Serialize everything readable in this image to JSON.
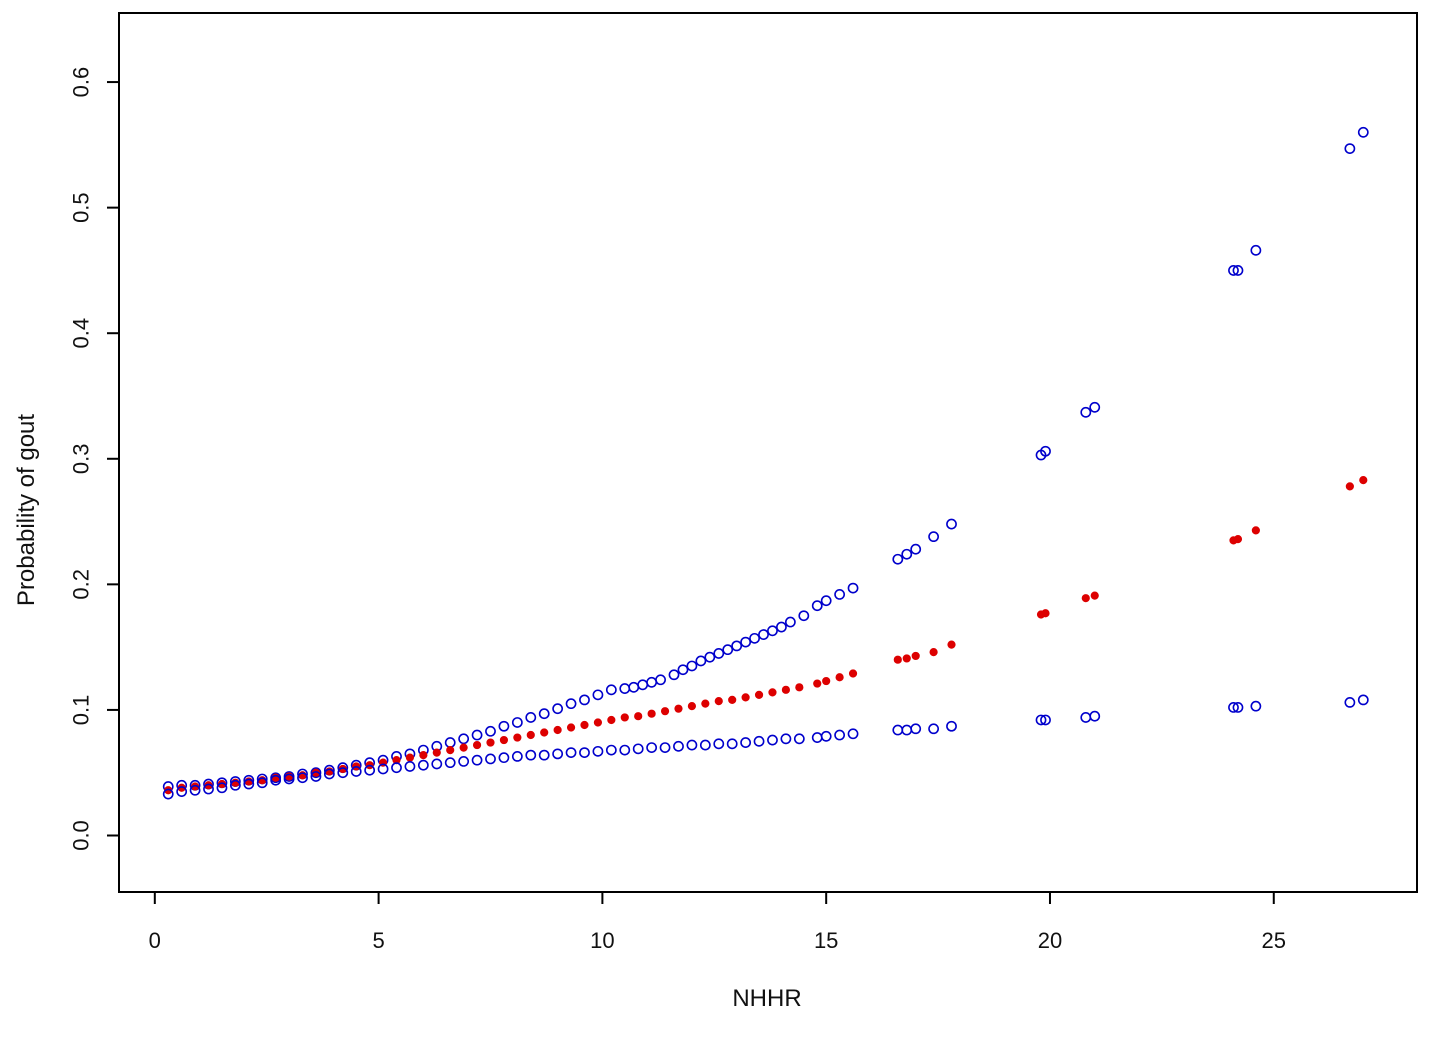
{
  "chart_data": {
    "type": "scatter",
    "title": "",
    "xlabel": "NHHR",
    "ylabel": "Probability of gout",
    "xlim": [
      -0.8,
      28.2
    ],
    "ylim": [
      -0.045,
      0.655
    ],
    "xticks": [
      0,
      5,
      10,
      15,
      20,
      25
    ],
    "xtick_labels": [
      "0",
      "5",
      "10",
      "15",
      "20",
      "25"
    ],
    "yticks": [
      0.0,
      0.1,
      0.2,
      0.3,
      0.4,
      0.5,
      0.6
    ],
    "ytick_labels": [
      "0.0",
      "0.1",
      "0.2",
      "0.3",
      "0.4",
      "0.5",
      "0.6"
    ],
    "grid": false,
    "legend": "none",
    "series": [
      {
        "role": "upper-ci",
        "color": "#0000cc",
        "marker": "open-circle",
        "x": [
          0.3,
          0.6,
          0.9,
          1.2,
          1.5,
          1.8,
          2.1,
          2.4,
          2.7,
          3.0,
          3.3,
          3.6,
          3.9,
          4.2,
          4.5,
          4.8,
          5.1,
          5.4,
          5.7,
          6.0,
          6.3,
          6.6,
          6.9,
          7.2,
          7.5,
          7.8,
          8.1,
          8.4,
          8.7,
          9.0,
          9.3,
          9.6,
          9.9,
          10.2,
          10.5,
          10.7,
          10.9,
          11.1,
          11.3,
          11.6,
          11.8,
          12.0,
          12.2,
          12.4,
          12.6,
          12.8,
          13.0,
          13.2,
          13.4,
          13.6,
          13.8,
          14.0,
          14.2,
          14.5,
          14.8,
          15.0,
          15.3,
          15.6,
          16.6,
          16.8,
          17.0,
          17.4,
          17.8,
          19.8,
          19.9,
          20.8,
          21.0,
          24.1,
          24.2,
          24.6,
          26.7,
          27.0
        ],
        "y": [
          0.039,
          0.04,
          0.04,
          0.041,
          0.042,
          0.043,
          0.044,
          0.045,
          0.046,
          0.047,
          0.049,
          0.05,
          0.052,
          0.054,
          0.056,
          0.058,
          0.06,
          0.063,
          0.065,
          0.068,
          0.071,
          0.074,
          0.077,
          0.08,
          0.083,
          0.087,
          0.09,
          0.094,
          0.097,
          0.101,
          0.105,
          0.108,
          0.112,
          0.116,
          0.117,
          0.118,
          0.12,
          0.122,
          0.124,
          0.128,
          0.132,
          0.135,
          0.139,
          0.142,
          0.145,
          0.148,
          0.151,
          0.154,
          0.157,
          0.16,
          0.163,
          0.166,
          0.17,
          0.175,
          0.183,
          0.187,
          0.192,
          0.197,
          0.22,
          0.224,
          0.228,
          0.238,
          0.248,
          0.303,
          0.306,
          0.337,
          0.341,
          0.45,
          0.45,
          0.466,
          0.547,
          0.56
        ]
      },
      {
        "role": "estimate",
        "color": "#dd0000",
        "marker": "filled-dot",
        "x": [
          0.3,
          0.6,
          0.9,
          1.2,
          1.5,
          1.8,
          2.1,
          2.4,
          2.7,
          3.0,
          3.3,
          3.6,
          3.9,
          4.2,
          4.5,
          4.8,
          5.1,
          5.4,
          5.7,
          6.0,
          6.3,
          6.6,
          6.9,
          7.2,
          7.5,
          7.8,
          8.1,
          8.4,
          8.7,
          9.0,
          9.3,
          9.6,
          9.9,
          10.2,
          10.5,
          10.8,
          11.1,
          11.4,
          11.7,
          12.0,
          12.3,
          12.6,
          12.9,
          13.2,
          13.5,
          13.8,
          14.1,
          14.4,
          14.8,
          15.0,
          15.3,
          15.6,
          16.6,
          16.8,
          17.0,
          17.4,
          17.8,
          19.8,
          19.9,
          20.8,
          21.0,
          24.1,
          24.2,
          24.6,
          26.7,
          27.0
        ],
        "y": [
          0.036,
          0.038,
          0.039,
          0.04,
          0.041,
          0.042,
          0.043,
          0.044,
          0.046,
          0.047,
          0.048,
          0.05,
          0.051,
          0.053,
          0.055,
          0.056,
          0.058,
          0.06,
          0.062,
          0.064,
          0.066,
          0.068,
          0.07,
          0.072,
          0.074,
          0.076,
          0.078,
          0.08,
          0.082,
          0.084,
          0.086,
          0.088,
          0.09,
          0.092,
          0.094,
          0.095,
          0.097,
          0.099,
          0.101,
          0.103,
          0.105,
          0.107,
          0.108,
          0.11,
          0.112,
          0.114,
          0.116,
          0.118,
          0.121,
          0.123,
          0.126,
          0.129,
          0.14,
          0.141,
          0.143,
          0.146,
          0.152,
          0.176,
          0.177,
          0.189,
          0.191,
          0.235,
          0.236,
          0.243,
          0.278,
          0.283
        ]
      },
      {
        "role": "lower-ci",
        "color": "#0000cc",
        "marker": "open-circle",
        "x": [
          0.3,
          0.6,
          0.9,
          1.2,
          1.5,
          1.8,
          2.1,
          2.4,
          2.7,
          3.0,
          3.3,
          3.6,
          3.9,
          4.2,
          4.5,
          4.8,
          5.1,
          5.4,
          5.7,
          6.0,
          6.3,
          6.6,
          6.9,
          7.2,
          7.5,
          7.8,
          8.1,
          8.4,
          8.7,
          9.0,
          9.3,
          9.6,
          9.9,
          10.2,
          10.5,
          10.8,
          11.1,
          11.4,
          11.7,
          12.0,
          12.3,
          12.6,
          12.9,
          13.2,
          13.5,
          13.8,
          14.1,
          14.4,
          14.8,
          15.0,
          15.3,
          15.6,
          16.6,
          16.8,
          17.0,
          17.4,
          17.8,
          19.8,
          19.9,
          20.8,
          21.0,
          24.1,
          24.2,
          24.6,
          26.7,
          27.0
        ],
        "y": [
          0.033,
          0.035,
          0.036,
          0.037,
          0.038,
          0.04,
          0.041,
          0.042,
          0.044,
          0.045,
          0.046,
          0.047,
          0.049,
          0.05,
          0.051,
          0.052,
          0.053,
          0.054,
          0.055,
          0.056,
          0.057,
          0.058,
          0.059,
          0.06,
          0.061,
          0.062,
          0.063,
          0.064,
          0.064,
          0.065,
          0.066,
          0.066,
          0.067,
          0.068,
          0.068,
          0.069,
          0.07,
          0.07,
          0.071,
          0.072,
          0.072,
          0.073,
          0.073,
          0.074,
          0.075,
          0.076,
          0.077,
          0.077,
          0.078,
          0.079,
          0.08,
          0.081,
          0.084,
          0.084,
          0.085,
          0.085,
          0.087,
          0.092,
          0.092,
          0.094,
          0.095,
          0.102,
          0.102,
          0.103,
          0.106,
          0.108
        ]
      }
    ]
  }
}
